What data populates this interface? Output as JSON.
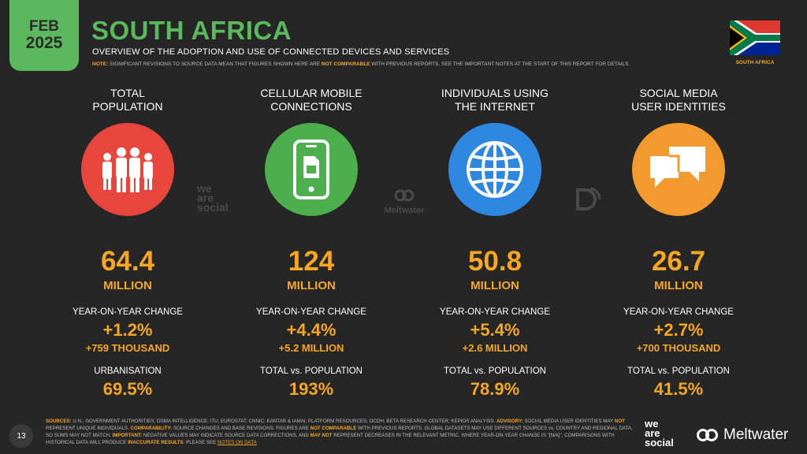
{
  "header": {
    "month": "FEB",
    "year": "2025",
    "title": "SOUTH AFRICA",
    "subtitle": "OVERVIEW OF THE ADOPTION AND USE OF CONNECTED DEVICES AND SERVICES",
    "note_label": "NOTE:",
    "note_text_1": "SIGNIFICANT REVISIONS TO SOURCE DATA MEAN THAT FIGURES SHOWN HERE ARE",
    "note_highlight": "NOT COMPARABLE",
    "note_text_2": "WITH PREVIOUS REPORTS. SEE THE IMPORTANT NOTES AT THE START OF THIS REPORT FOR DETAILS.",
    "flag_label": "SOUTH AFRICA"
  },
  "columns": [
    {
      "heading": "TOTAL\nPOPULATION",
      "icon": "people-icon",
      "color": "#e8453c",
      "value": "64.4",
      "unit": "MILLION",
      "yoy_label": "YEAR-ON-YEAR CHANGE",
      "yoy_pct": "+1.2%",
      "yoy_abs": "+759 THOUSAND",
      "bottom_label": "URBANISATION",
      "bottom_value": "69.5%"
    },
    {
      "heading": "CELLULAR MOBILE\nCONNECTIONS",
      "icon": "mobile-phone-icon",
      "color": "#4cae4c",
      "value": "124",
      "unit": "MILLION",
      "yoy_label": "YEAR-ON-YEAR CHANGE",
      "yoy_pct": "+4.4%",
      "yoy_abs": "+5.2 MILLION",
      "bottom_label": "TOTAL vs. POPULATION",
      "bottom_value": "193%"
    },
    {
      "heading": "INDIVIDUALS USING\nTHE INTERNET",
      "icon": "globe-icon",
      "color": "#2f88e0",
      "value": "50.8",
      "unit": "MILLION",
      "yoy_label": "YEAR-ON-YEAR CHANGE",
      "yoy_pct": "+5.4%",
      "yoy_abs": "+2.6 MILLION",
      "bottom_label": "TOTAL vs. POPULATION",
      "bottom_value": "78.9%"
    },
    {
      "heading": "SOCIAL MEDIA\nUSER IDENTITIES",
      "icon": "chat-bubbles-icon",
      "color": "#f29a2e",
      "value": "26.7",
      "unit": "MILLION",
      "yoy_label": "YEAR-ON-YEAR CHANGE",
      "yoy_pct": "+2.7%",
      "yoy_abs": "+700 THOUSAND",
      "bottom_label": "TOTAL vs. POPULATION",
      "bottom_value": "41.5%"
    }
  ],
  "watermarks": {
    "was_1": "we",
    "was_2": "are",
    "was_3": "social",
    "meltwater": "Meltwater"
  },
  "footer": {
    "page_number": "13",
    "sources_label": "SOURCES:",
    "sources_text": "U.N.; GOVERNMENT AUTHORITIES; GSMA INTELLIGENCE; ITU; EUROSTAT; CNNIC; KANTAR & IAMAI; PLATFORM RESOURCES; OCDH; BETA RESEARCH CENTER; KEPIOS ANALYSIS.",
    "advisory_label": "ADVISORY:",
    "advisory_text_1": "SOCIAL MEDIA USER IDENTITIES MAY",
    "advisory_not": "NOT",
    "advisory_text_2": "REPRESENT UNIQUE INDIVIDUALS.",
    "comparability_label": "COMPARABILITY:",
    "comparability_text_1": "SOURCE CHANGES AND BASE REVISIONS. FIGURES ARE",
    "comparability_highlight": "NOT COMPARABLE",
    "comparability_text_2": "WITH PREVIOUS REPORTS. GLOBAL DATASETS MAY USE DIFFERENT SOURCES vs. COUNTRY AND REGIONAL DATA, SO SUMS MAY NOT MATCH.",
    "important_label": "IMPORTANT:",
    "important_text_1": "NEGATIVE VALUES MAY INDICATE SOURCE DATA CORRECTIONS, AND",
    "important_may_not": "MAY NOT",
    "important_text_2": "REPRESENT DECREASES IN THE RELEVANT METRIC. WHERE YEAR-ON-YEAR CHANGE IS \"[N/A]\", COMPARISONS WITH HISTORICAL DATA WILL PRODUCE",
    "important_inaccurate": "INACCURATE RESULTS",
    "important_text_3": ". PLEASE SEE",
    "notes_link": "NOTES ON DATA",
    "was_logo_1": "we",
    "was_logo_2": "are",
    "was_logo_3": "social",
    "meltwater_logo": "Meltwater"
  }
}
